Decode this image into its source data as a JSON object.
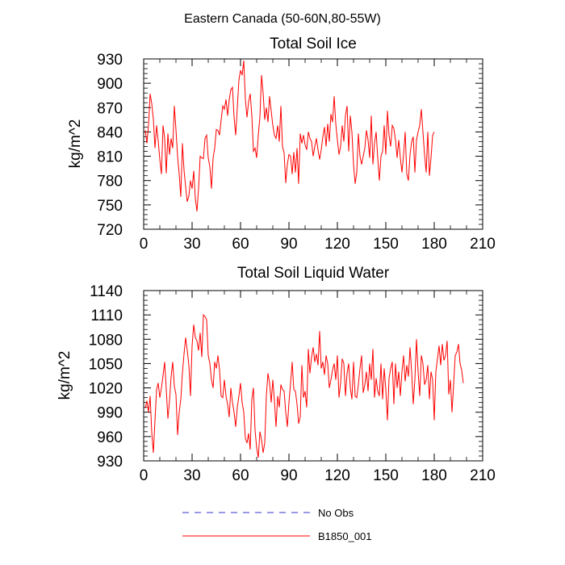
{
  "figure_title": "Eastern Canada (50-60N,80-55W)",
  "legend": [
    {
      "label": "No Obs",
      "color": "#3333cc",
      "style": "dashed"
    },
    {
      "label": "B1850_001",
      "color": "#ff0000",
      "style": "solid"
    }
  ],
  "chart_data": [
    {
      "type": "line",
      "title": "Total Soil Ice",
      "xlabel": "",
      "ylabel": "kg/m^2",
      "xlim": [
        0,
        210
      ],
      "ylim": [
        720,
        930
      ],
      "xticks": [
        0,
        30,
        60,
        90,
        120,
        150,
        180,
        210
      ],
      "yticks": [
        720,
        750,
        780,
        810,
        840,
        870,
        900,
        930
      ],
      "series": [
        {
          "name": "B1850_001",
          "color": "#ff0000",
          "x_start": 1,
          "x_step": 1,
          "values": [
            842,
            826,
            848,
            887,
            875,
            856,
            820,
            848,
            829,
            806,
            788,
            848,
            832,
            789,
            838,
            812,
            832,
            820,
            872,
            843,
            810,
            788,
            760,
            826,
            793,
            772,
            754,
            761,
            780,
            770,
            792,
            758,
            742,
            770,
            810,
            808,
            807,
            832,
            836,
            808,
            797,
            770,
            808,
            820,
            843,
            842,
            836,
            855,
            872,
            868,
            880,
            860,
            880,
            892,
            895,
            858,
            836,
            870,
            904,
            916,
            910,
            928,
            880,
            858,
            877,
            887,
            860,
            816,
            820,
            808,
            836,
            858,
            910,
            888,
            855,
            870,
            852,
            884,
            866,
            848,
            836,
            832,
            848,
            828,
            872,
            822,
            814,
            777,
            800,
            812,
            810,
            788,
            815,
            790,
            820,
            776,
            838,
            826,
            836,
            824,
            818,
            840,
            832,
            828,
            810,
            822,
            832,
            818,
            806,
            818,
            834,
            846,
            822,
            850,
            828,
            862,
            852,
            884,
            850,
            830,
            812,
            822,
            848,
            828,
            860,
            872,
            816,
            860,
            840,
            800,
            776,
            790,
            838,
            810,
            800,
            810,
            820,
            842,
            830,
            808,
            860,
            800,
            826,
            840,
            808,
            780,
            810,
            816,
            848,
            812,
            866,
            836,
            822,
            848,
            844,
            830,
            808,
            830,
            808,
            790,
            812,
            840,
            788,
            780,
            812,
            828,
            834,
            790,
            830,
            840,
            848,
            868,
            840,
            812,
            790,
            840,
            786,
            808,
            836,
            840
          ]
        },
        {
          "name": "No Obs",
          "color": "#3333cc",
          "values": []
        }
      ]
    },
    {
      "type": "line",
      "title": "Total Soil Liquid Water",
      "xlabel": "",
      "ylabel": "kg/m^2",
      "xlim": [
        0,
        210
      ],
      "ylim": [
        930,
        1140
      ],
      "xticks": [
        0,
        30,
        60,
        90,
        120,
        150,
        180,
        210
      ],
      "yticks": [
        930,
        960,
        990,
        1020,
        1050,
        1080,
        1110,
        1140
      ],
      "series": [
        {
          "name": "B1850_001",
          "color": "#ff0000",
          "x_start": 1,
          "x_step": 1,
          "values": [
            995,
            1004,
            990,
            1010,
            965,
            940,
            980,
            1018,
            1026,
            1008,
            1020,
            1035,
            1052,
            1018,
            982,
            1004,
            1034,
            1052,
            1022,
            1012,
            962,
            990,
            1006,
            1038,
            1062,
            1082,
            1066,
            1048,
            1010,
            1072,
            1098,
            1082,
            1078,
            1066,
            1088,
            1058,
            1110,
            1108,
            1104,
            1060,
            1050,
            1030,
            1020,
            1052,
            1044,
            1060,
            1042,
            1010,
            1008,
            1030,
            1010,
            1000,
            984,
            1020,
            1002,
            990,
            972,
            996,
            1010,
            1026,
            1002,
            990,
            958,
            952,
            964,
            944,
            1006,
            1020,
            968,
            946,
            934,
            966,
            956,
            940,
            952,
            1010,
            1038,
            1026,
            1002,
            1030,
            1004,
            972,
            1010,
            996,
            1024,
            1018,
            1016,
            990,
            972,
            1002,
            1026,
            1052,
            1018,
            1016,
            1000,
            976,
            984,
            1048,
            1008,
            1016,
            996,
            1068,
            1038,
            1058,
            1070,
            1052,
            1062,
            1048,
            1090,
            1044,
            1052,
            1036,
            1060,
            1050,
            1020,
            1030,
            1042,
            1050,
            1030,
            1060,
            1008,
            1026,
            1056,
            1050,
            1010,
            1038,
            1050,
            1020,
            1006,
            1052,
            1010,
            1008,
            1024,
            1044,
            1060,
            1014,
            1024,
            1040,
            1016,
            1050,
            1030,
            1068,
            1008,
            1032,
            1016,
            1010,
            1050,
            1006,
            1044,
            1018,
            980,
            1032,
            1044,
            1052,
            1000,
            1050,
            1020,
            1040,
            1010,
            1040,
            1060,
            1028,
            1048,
            1034,
            1070,
            1040,
            1000,
            1030,
            1080,
            1040,
            1010,
            1060,
            1050,
            1024,
            1030,
            1048,
            1006,
            1040,
            1030,
            980,
            1040,
            1056,
            1072,
            1048,
            1074,
            1054,
            1060,
            1078,
            1012,
            1030,
            990,
            1024,
            1060,
            1064,
            1074,
            1050,
            1042,
            1026
          ]
        },
        {
          "name": "No Obs",
          "color": "#3333cc",
          "values": []
        }
      ]
    }
  ]
}
